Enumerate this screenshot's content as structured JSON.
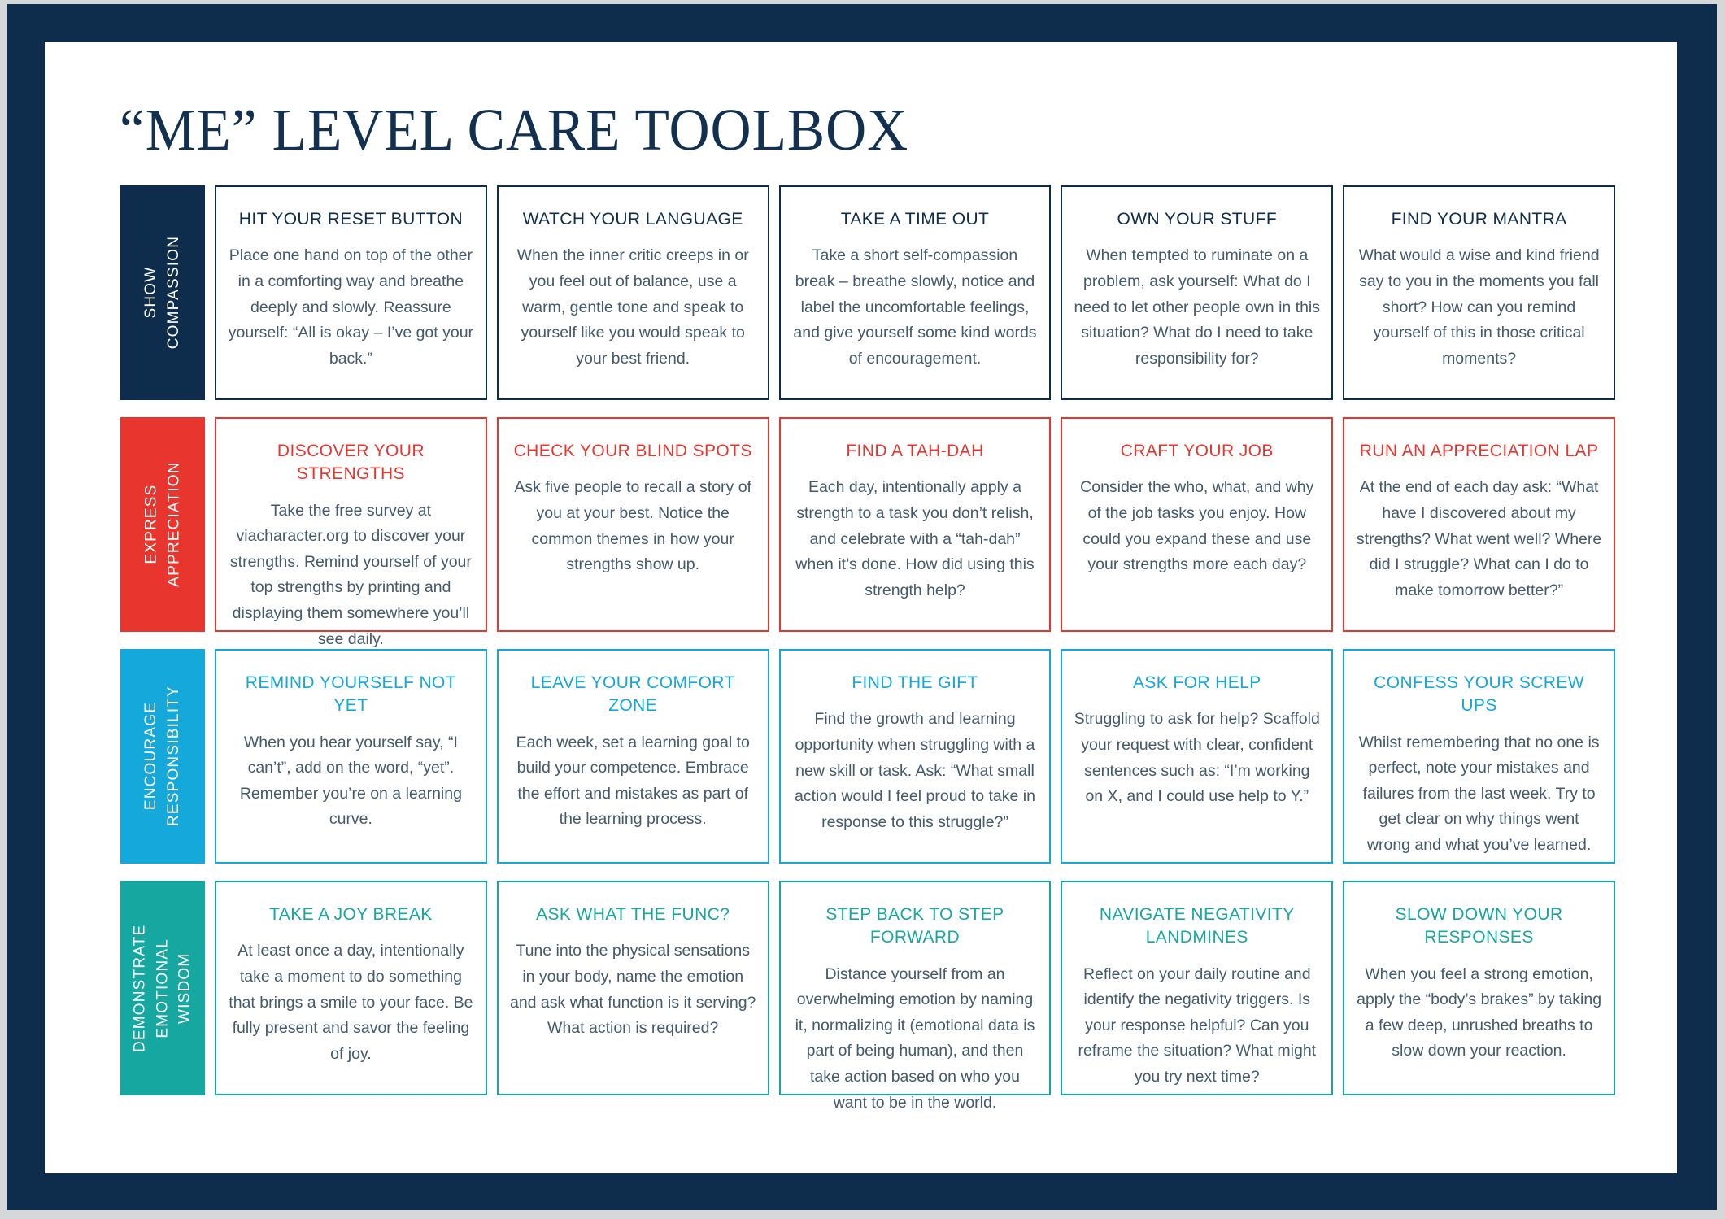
{
  "title": "“ME” LEVEL CARE TOOLBOX",
  "colors": {
    "navy": "#0e2c4b",
    "red": "#e8352e",
    "cyan": "#14a8db",
    "teal": "#16a7a1",
    "body_text": "#44596c",
    "page_background": "#ffffff",
    "frame": "#0e2c4b",
    "outer_background": "#d6d7d8"
  },
  "rows": [
    {
      "id": "show-compassion",
      "label": "SHOW\nCOMPASSION",
      "color": "#0e2c4b",
      "cards": [
        {
          "title": "HIT YOUR RESET BUTTON",
          "body": "Place one hand on top of the other in a comforting way and breathe deeply and slowly. Reassure yourself: “All is okay – I’ve got your back.”"
        },
        {
          "title": "WATCH YOUR LANGUAGE",
          "body": "When the inner critic creeps in or you feel out of balance, use a warm, gentle tone and speak to yourself like you would speak to your best friend."
        },
        {
          "title": "TAKE A TIME OUT",
          "body": "Take a short self-compassion break – breathe slowly, notice and label the uncomfortable feelings, and give yourself some kind words of encouragement."
        },
        {
          "title": "OWN YOUR STUFF",
          "body": "When tempted to ruminate on a problem, ask yourself: What do I need to let other people own in this situation? What do I need to take responsibility for?"
        },
        {
          "title": "FIND YOUR MANTRA",
          "body": "What would a wise and kind friend say to you in the moments you fall short? How can you remind yourself of this in those critical moments?"
        }
      ]
    },
    {
      "id": "express-appreciation",
      "label": "EXPRESS\nAPPRECIATION",
      "color": "#e8352e",
      "cards": [
        {
          "title": "DISCOVER YOUR STRENGTHS",
          "body": "Take the free survey at viacharacter.org to discover your strengths. Remind yourself of your top strengths by printing and displaying them somewhere you’ll see daily."
        },
        {
          "title": "CHECK YOUR BLIND SPOTS",
          "body": "Ask five people to recall a story of you at your best. Notice the common themes in how your strengths show up."
        },
        {
          "title": "FIND A TAH-DAH",
          "body": "Each day, intentionally apply a strength to a task you don’t relish, and celebrate with a “tah-dah” when it’s done. How did using this strength help?"
        },
        {
          "title": "CRAFT YOUR JOB",
          "body": "Consider the who, what, and why of the job tasks you enjoy. How could you expand these and use your strengths more each day?"
        },
        {
          "title": "RUN AN APPRECIATION LAP",
          "body": "At the end of each day ask: “What have I discovered about my strengths? What went well? Where did I struggle? What can I do to make tomorrow better?”"
        }
      ]
    },
    {
      "id": "encourage-responsibility",
      "label": "ENCOURAGE\nRESPONSIBILITY",
      "color": "#14a8db",
      "cards": [
        {
          "title": "REMIND YOURSELF NOT YET",
          "body": "When you hear yourself say, “I can’t”, add on the word, “yet”. Remember you’re on a learning curve."
        },
        {
          "title": "LEAVE YOUR COMFORT ZONE",
          "body": "Each week, set a learning goal to build your competence. Embrace the effort and mistakes as part of the learning process."
        },
        {
          "title": "FIND THE GIFT",
          "body": "Find the growth and learning opportunity when struggling with a new skill or task. Ask: “What small action would I feel proud to take in response to this struggle?”"
        },
        {
          "title": "ASK FOR HELP",
          "body": "Struggling to ask for help? Scaffold your request with clear, confident sentences such as: “I’m working on X, and I could use help to Y.”"
        },
        {
          "title": "CONFESS YOUR SCREW UPS",
          "body": "Whilst remembering that no one is perfect, note your mistakes and failures from the last week. Try to get clear on why things went wrong and what you’ve learned."
        }
      ]
    },
    {
      "id": "demonstrate-emotional-wisdom",
      "label": "DEMONSTRATE\nEMOTIONAL WISDOM",
      "color": "#16a7a1",
      "cards": [
        {
          "title": "TAKE A JOY BREAK",
          "body": "At least once a day, intentionally take a moment to do something that brings a smile to your face. Be fully present and savor the feeling of joy."
        },
        {
          "title": "ASK WHAT THE FUNC?",
          "body": "Tune into the physical sensations in your body, name the emotion and ask what function is it serving? What action is required?"
        },
        {
          "title": "STEP BACK TO STEP FORWARD",
          "body": "Distance yourself from an overwhelming emotion by naming it, normalizing it (emotional data is part of being human), and then take action based on who you want to be in the world."
        },
        {
          "title": "NAVIGATE NEGATIVITY LANDMINES",
          "body": "Reflect on your daily routine and identify the negativity triggers. Is your response helpful? Can you reframe the situation? What might you try next time?"
        },
        {
          "title": "SLOW DOWN YOUR RESPONSES",
          "body": "When you feel a strong emotion, apply the “body’s brakes” by taking a few deep, unrushed breaths to slow down your reaction."
        }
      ]
    }
  ]
}
